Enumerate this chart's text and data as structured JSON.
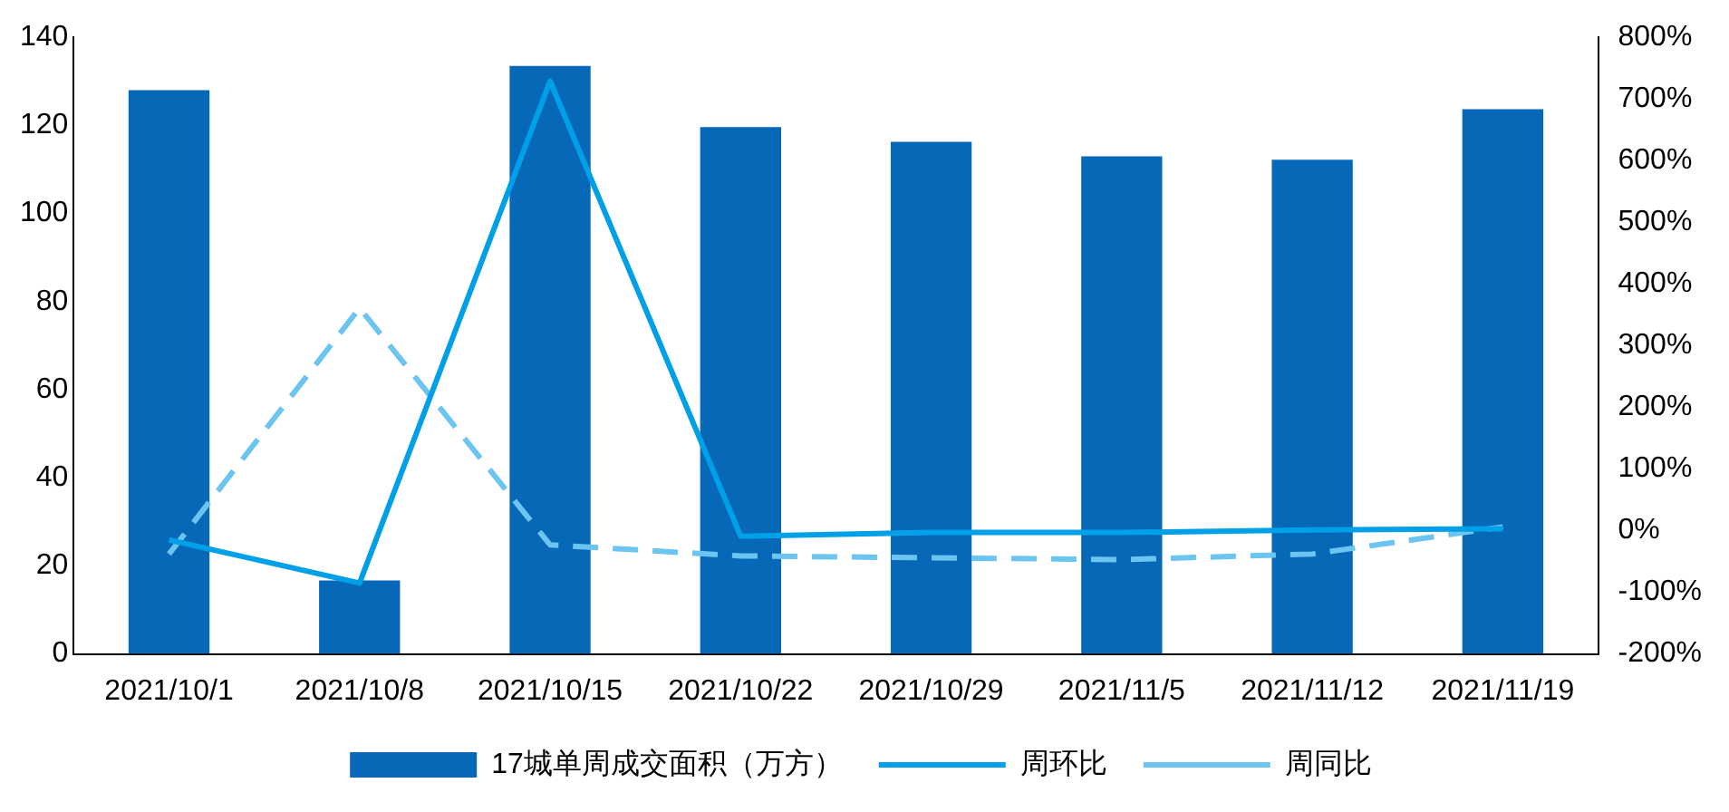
{
  "chart_data": {
    "type": "bar",
    "categories": [
      "2021/10/1",
      "2021/10/8",
      "2021/10/15",
      "2021/10/22",
      "2021/10/29",
      "2021/11/5",
      "2021/11/12",
      "2021/11/19"
    ],
    "series": [
      {
        "name": "17城单周成交面积（万方）",
        "color": "#0868b8",
        "values": [
          128,
          16.7,
          133.5,
          119.6,
          116.3,
          113,
          112.2,
          123.7
        ]
      },
      {
        "name": "周环比",
        "type": "line",
        "axis": "y2",
        "color": "#00a0e9",
        "line_style": "solid",
        "values": [
          -15,
          -85,
          729,
          -9,
          -3,
          -3,
          1,
          3
        ]
      },
      {
        "name": "周同比",
        "type": "line",
        "axis": "y2",
        "color": "#6cc4f0",
        "line_style": "dashed",
        "values": [
          -38,
          361,
          -23,
          -41,
          -44,
          -47,
          -38,
          6
        ]
      }
    ],
    "ylim": [
      0,
      140
    ],
    "yticks": [
      0,
      20,
      40,
      60,
      80,
      100,
      120,
      140
    ],
    "y2lim": [
      -200,
      800
    ],
    "y2ticks": [
      {
        "value": -200,
        "label": "-200%"
      },
      {
        "value": -100,
        "label": "-100%"
      },
      {
        "value": 0,
        "label": "0%"
      },
      {
        "value": 100,
        "label": "100%"
      },
      {
        "value": 200,
        "label": "200%"
      },
      {
        "value": 300,
        "label": "300%"
      },
      {
        "value": 400,
        "label": "400%"
      },
      {
        "value": 500,
        "label": "500%"
      },
      {
        "value": 600,
        "label": "600%"
      },
      {
        "value": 700,
        "label": "700%"
      },
      {
        "value": 800,
        "label": "800%"
      }
    ],
    "grid": false,
    "legend": "bottom",
    "marker": "none"
  }
}
